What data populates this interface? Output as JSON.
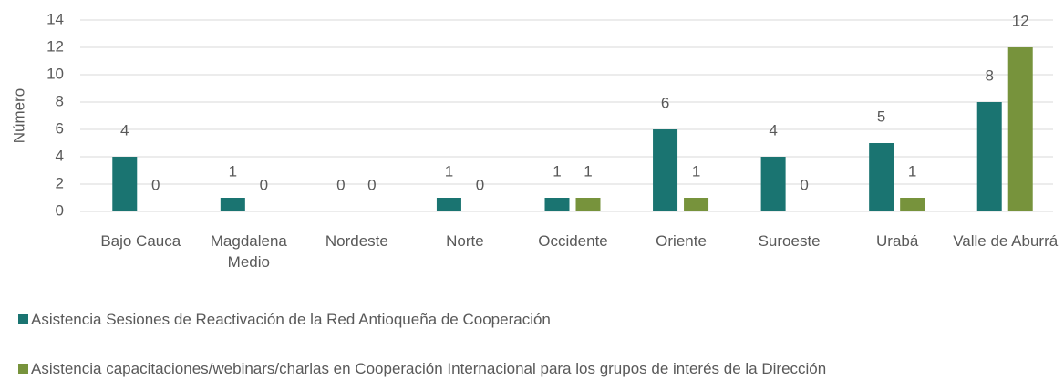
{
  "chart_data": {
    "type": "bar",
    "ylabel": "Número",
    "categories": [
      "Bajo Cauca",
      "Magdalena Medio",
      "Nordeste",
      "Norte",
      "Occidente",
      "Oriente",
      "Suroeste",
      "Urabá",
      "Valle de Aburrá"
    ],
    "series": [
      {
        "name": "Asistencia Sesiones de Reactivación de la Red Antioqueña de Cooperación",
        "color": "#1a7471",
        "values": [
          4,
          1,
          0,
          1,
          1,
          6,
          4,
          5,
          8
        ]
      },
      {
        "name": "Asistencia capacitaciones/webinars/charlas en Cooperación Internacional para los grupos de interés de la Dirección",
        "color": "#77933c",
        "values": [
          0,
          0,
          0,
          0,
          1,
          1,
          0,
          1,
          12
        ]
      }
    ],
    "ylim": [
      0,
      14
    ],
    "yticks": [
      0,
      2,
      4,
      6,
      8,
      10,
      12,
      14
    ],
    "grid": true,
    "legend": "bottom"
  }
}
